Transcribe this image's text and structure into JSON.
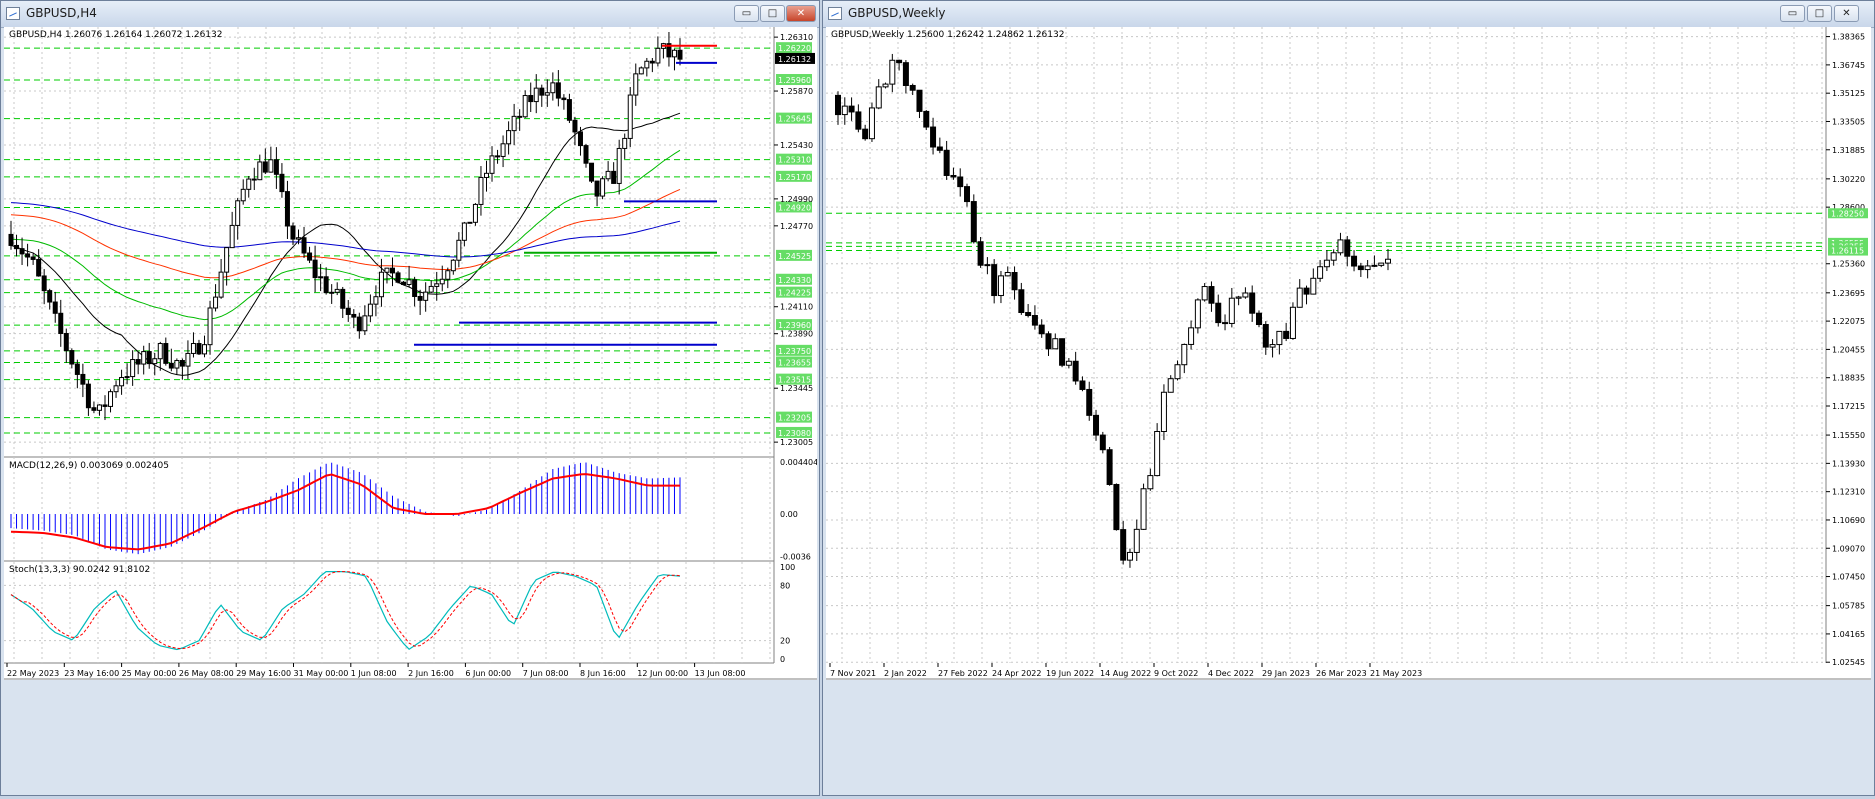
{
  "left": {
    "title": "GBPUSD,H4",
    "header": "GBPUSD,H4  1.26076 1.26164 1.26072 1.26132",
    "macd_label": "MACD(12,26,9) 0.003069 0.002405",
    "stoch_label": "Stoch(13,3,3) 90.0242 91.8102",
    "price_ticks": [
      "1.26310",
      "1.25870",
      "1.25430",
      "1.24990",
      "1.24770",
      "1.24110",
      "1.23890",
      "1.23445",
      "1.23005"
    ],
    "level_labels": [
      "1.26220",
      "1.25960",
      "1.25645",
      "1.25310",
      "1.25170",
      "1.24920",
      "1.24525",
      "1.24330",
      "1.24225",
      "1.23960",
      "1.23750",
      "1.23655",
      "1.23515",
      "1.23205",
      "1.23080"
    ],
    "current_price": "1.26132",
    "macd_ticks": [
      "0.004404",
      "0.00",
      "-0.0036"
    ],
    "stoch_ticks": [
      "100",
      "80",
      "20",
      "0"
    ],
    "time_labels": [
      "22 May 2023",
      "23 May 16:00",
      "25 May 00:00",
      "26 May 08:00",
      "29 May 16:00",
      "31 May 00:00",
      "1 Jun 08:00",
      "2 Jun 16:00",
      "6 Jun 00:00",
      "7 Jun 08:00",
      "8 Jun 16:00",
      "12 Jun 00:00",
      "13 Jun 08:00"
    ]
  },
  "right": {
    "title": "GBPUSD,Weekly",
    "header": "GBPUSD,Weekly  1.25600 1.26242 1.24862 1.26132",
    "price_ticks": [
      "1.38365",
      "1.36745",
      "1.35125",
      "1.33505",
      "1.31885",
      "1.30220",
      "1.28600",
      "1.25360",
      "1.23695",
      "1.22075",
      "1.20455",
      "1.18835",
      "1.17215",
      "1.15550",
      "1.13930",
      "1.12310",
      "1.10690",
      "1.09070",
      "1.07450",
      "1.05785",
      "1.04165",
      "1.02545"
    ],
    "level_labels": [
      "1.28250",
      "1.26555",
      "1.26355",
      "1.26115"
    ],
    "time_labels": [
      "7 Nov 2021",
      "2 Jan 2022",
      "27 Feb 2022",
      "24 Apr 2022",
      "19 Jun 2022",
      "14 Aug 2022",
      "9 Oct 2022",
      "4 Dec 2022",
      "29 Jan 2023",
      "26 Mar 2023",
      "21 May 2023"
    ]
  },
  "buttons": {
    "minimize": "▭",
    "maximize": "□",
    "close": "✕"
  },
  "colors": {
    "bull": "#ffffff",
    "bear": "#000000",
    "grid": "#c8c8c8",
    "level": "#00cc00",
    "ma_black": "#000000",
    "ma_red": "#ff3300",
    "ma_green": "#00bb00",
    "ma_blue": "#0000cc",
    "macd_hist": "#0000ff",
    "macd_signal": "#ff0000",
    "stoch_main": "#00bbbb",
    "stoch_signal": "#ff0000"
  }
}
